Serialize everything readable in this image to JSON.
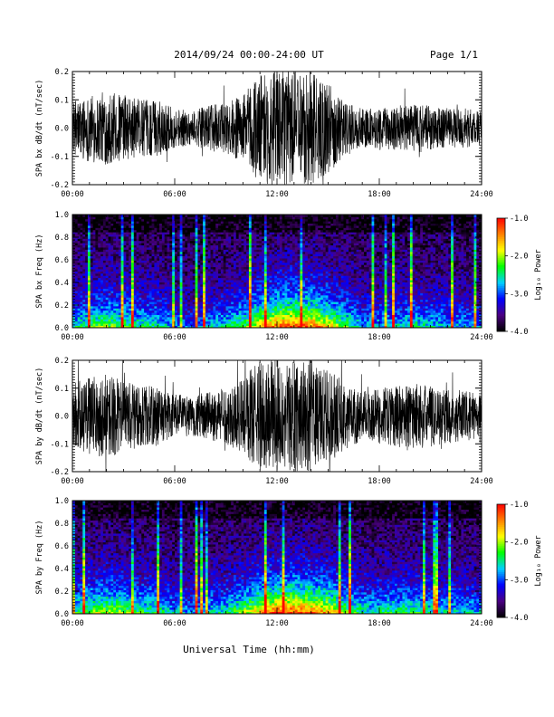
{
  "header": {
    "title": "2014/09/24  00:00-24:00 UT",
    "page": "Page 1/1"
  },
  "footer": {
    "xlabel": "Universal Time (hh:mm)"
  },
  "colorbar": {
    "label": "Log₁₀ Power",
    "ticks": [
      "-1.0",
      "-2.0",
      "-3.0",
      "-4.0"
    ],
    "range": [
      -4.0,
      -1.0
    ],
    "colors": [
      "#000000",
      "#4b0082",
      "#0000ff",
      "#00d0ff",
      "#00ff00",
      "#ffff00",
      "#ff8000",
      "#ff0000"
    ]
  },
  "chart_data": [
    {
      "type": "line",
      "title": "",
      "ylabel": "SPA bx dB/dt (nT/sec)",
      "xlabel": "",
      "xlim": [
        "00:00",
        "24:00"
      ],
      "ylim": [
        -0.2,
        0.2
      ],
      "x_ticks": [
        "00:00",
        "06:00",
        "12:00",
        "18:00",
        "24:00"
      ],
      "y_ticks": [
        "0.2",
        "0.1",
        "0.0",
        "-0.1",
        "-0.2"
      ],
      "y_tick_values": [
        0.2,
        0.1,
        0.0,
        -0.1,
        -0.2
      ],
      "envelope": {
        "hours": [
          0,
          1,
          2,
          3,
          4,
          5,
          6,
          7,
          8,
          9,
          10,
          11,
          12,
          13,
          14,
          15,
          16,
          17,
          18,
          19,
          20,
          21,
          22,
          23,
          24
        ],
        "amplitude": [
          0.09,
          0.12,
          0.13,
          0.12,
          0.1,
          0.1,
          0.07,
          0.06,
          0.08,
          0.09,
          0.12,
          0.2,
          0.2,
          0.2,
          0.2,
          0.16,
          0.1,
          0.07,
          0.07,
          0.08,
          0.09,
          0.08,
          0.07,
          0.07,
          0.06
        ]
      }
    },
    {
      "type": "heatmap",
      "title": "",
      "ylabel": "SPA bx Freq (Hz)",
      "xlabel": "",
      "xlim": [
        "00:00",
        "24:00"
      ],
      "ylim": [
        0.0,
        1.0
      ],
      "x_ticks": [
        "00:00",
        "06:00",
        "12:00",
        "18:00",
        "24:00"
      ],
      "y_ticks": [
        "1.0",
        "0.8",
        "0.6",
        "0.4",
        "0.2",
        "0.0"
      ],
      "y_tick_values": [
        1.0,
        0.8,
        0.6,
        0.4,
        0.2,
        0.0
      ],
      "zlim": [
        -4.0,
        -1.0
      ],
      "activity": {
        "hours": [
          0,
          1,
          2,
          3,
          4,
          5,
          6,
          7,
          8,
          9,
          10,
          11,
          12,
          13,
          14,
          15,
          16,
          17,
          18,
          19,
          20,
          21,
          22,
          23,
          24
        ],
        "level": [
          0.45,
          0.6,
          0.65,
          0.6,
          0.5,
          0.5,
          0.35,
          0.3,
          0.4,
          0.45,
          0.6,
          0.8,
          0.95,
          1.0,
          0.95,
          0.8,
          0.6,
          0.4,
          0.4,
          0.45,
          0.5,
          0.45,
          0.4,
          0.4,
          0.35
        ]
      }
    },
    {
      "type": "line",
      "title": "",
      "ylabel": "SPA by dB/dt (nT/sec)",
      "xlabel": "",
      "xlim": [
        "00:00",
        "24:00"
      ],
      "ylim": [
        -0.2,
        0.2
      ],
      "x_ticks": [
        "00:00",
        "06:00",
        "12:00",
        "18:00",
        "24:00"
      ],
      "y_ticks": [
        "0.2",
        "0.1",
        "0.0",
        "-0.1",
        "-0.2"
      ],
      "y_tick_values": [
        0.2,
        0.1,
        0.0,
        -0.1,
        -0.2
      ],
      "envelope": {
        "hours": [
          0,
          1,
          2,
          3,
          4,
          5,
          6,
          7,
          8,
          9,
          10,
          11,
          12,
          13,
          14,
          15,
          16,
          17,
          18,
          19,
          20,
          21,
          22,
          23,
          24
        ],
        "amplitude": [
          0.12,
          0.14,
          0.15,
          0.13,
          0.11,
          0.11,
          0.08,
          0.07,
          0.09,
          0.1,
          0.14,
          0.2,
          0.2,
          0.2,
          0.2,
          0.17,
          0.12,
          0.09,
          0.1,
          0.11,
          0.12,
          0.11,
          0.1,
          0.09,
          0.08
        ]
      }
    },
    {
      "type": "heatmap",
      "title": "",
      "ylabel": "SPA by Freq (Hz)",
      "xlabel": "Universal Time (hh:mm)",
      "xlim": [
        "00:00",
        "24:00"
      ],
      "ylim": [
        0.0,
        1.0
      ],
      "x_ticks": [
        "00:00",
        "06:00",
        "12:00",
        "18:00",
        "24:00"
      ],
      "y_ticks": [
        "1.0",
        "0.8",
        "0.6",
        "0.4",
        "0.2",
        "0.0"
      ],
      "y_tick_values": [
        1.0,
        0.8,
        0.6,
        0.4,
        0.2,
        0.0
      ],
      "zlim": [
        -4.0,
        -1.0
      ],
      "activity": {
        "hours": [
          0,
          1,
          2,
          3,
          4,
          5,
          6,
          7,
          8,
          9,
          10,
          11,
          12,
          13,
          14,
          15,
          16,
          17,
          18,
          19,
          20,
          21,
          22,
          23,
          24
        ],
        "level": [
          0.5,
          0.65,
          0.7,
          0.65,
          0.55,
          0.55,
          0.4,
          0.35,
          0.45,
          0.5,
          0.65,
          0.85,
          1.0,
          1.0,
          0.95,
          0.85,
          0.65,
          0.5,
          0.5,
          0.55,
          0.55,
          0.5,
          0.45,
          0.45,
          0.4
        ]
      }
    }
  ]
}
